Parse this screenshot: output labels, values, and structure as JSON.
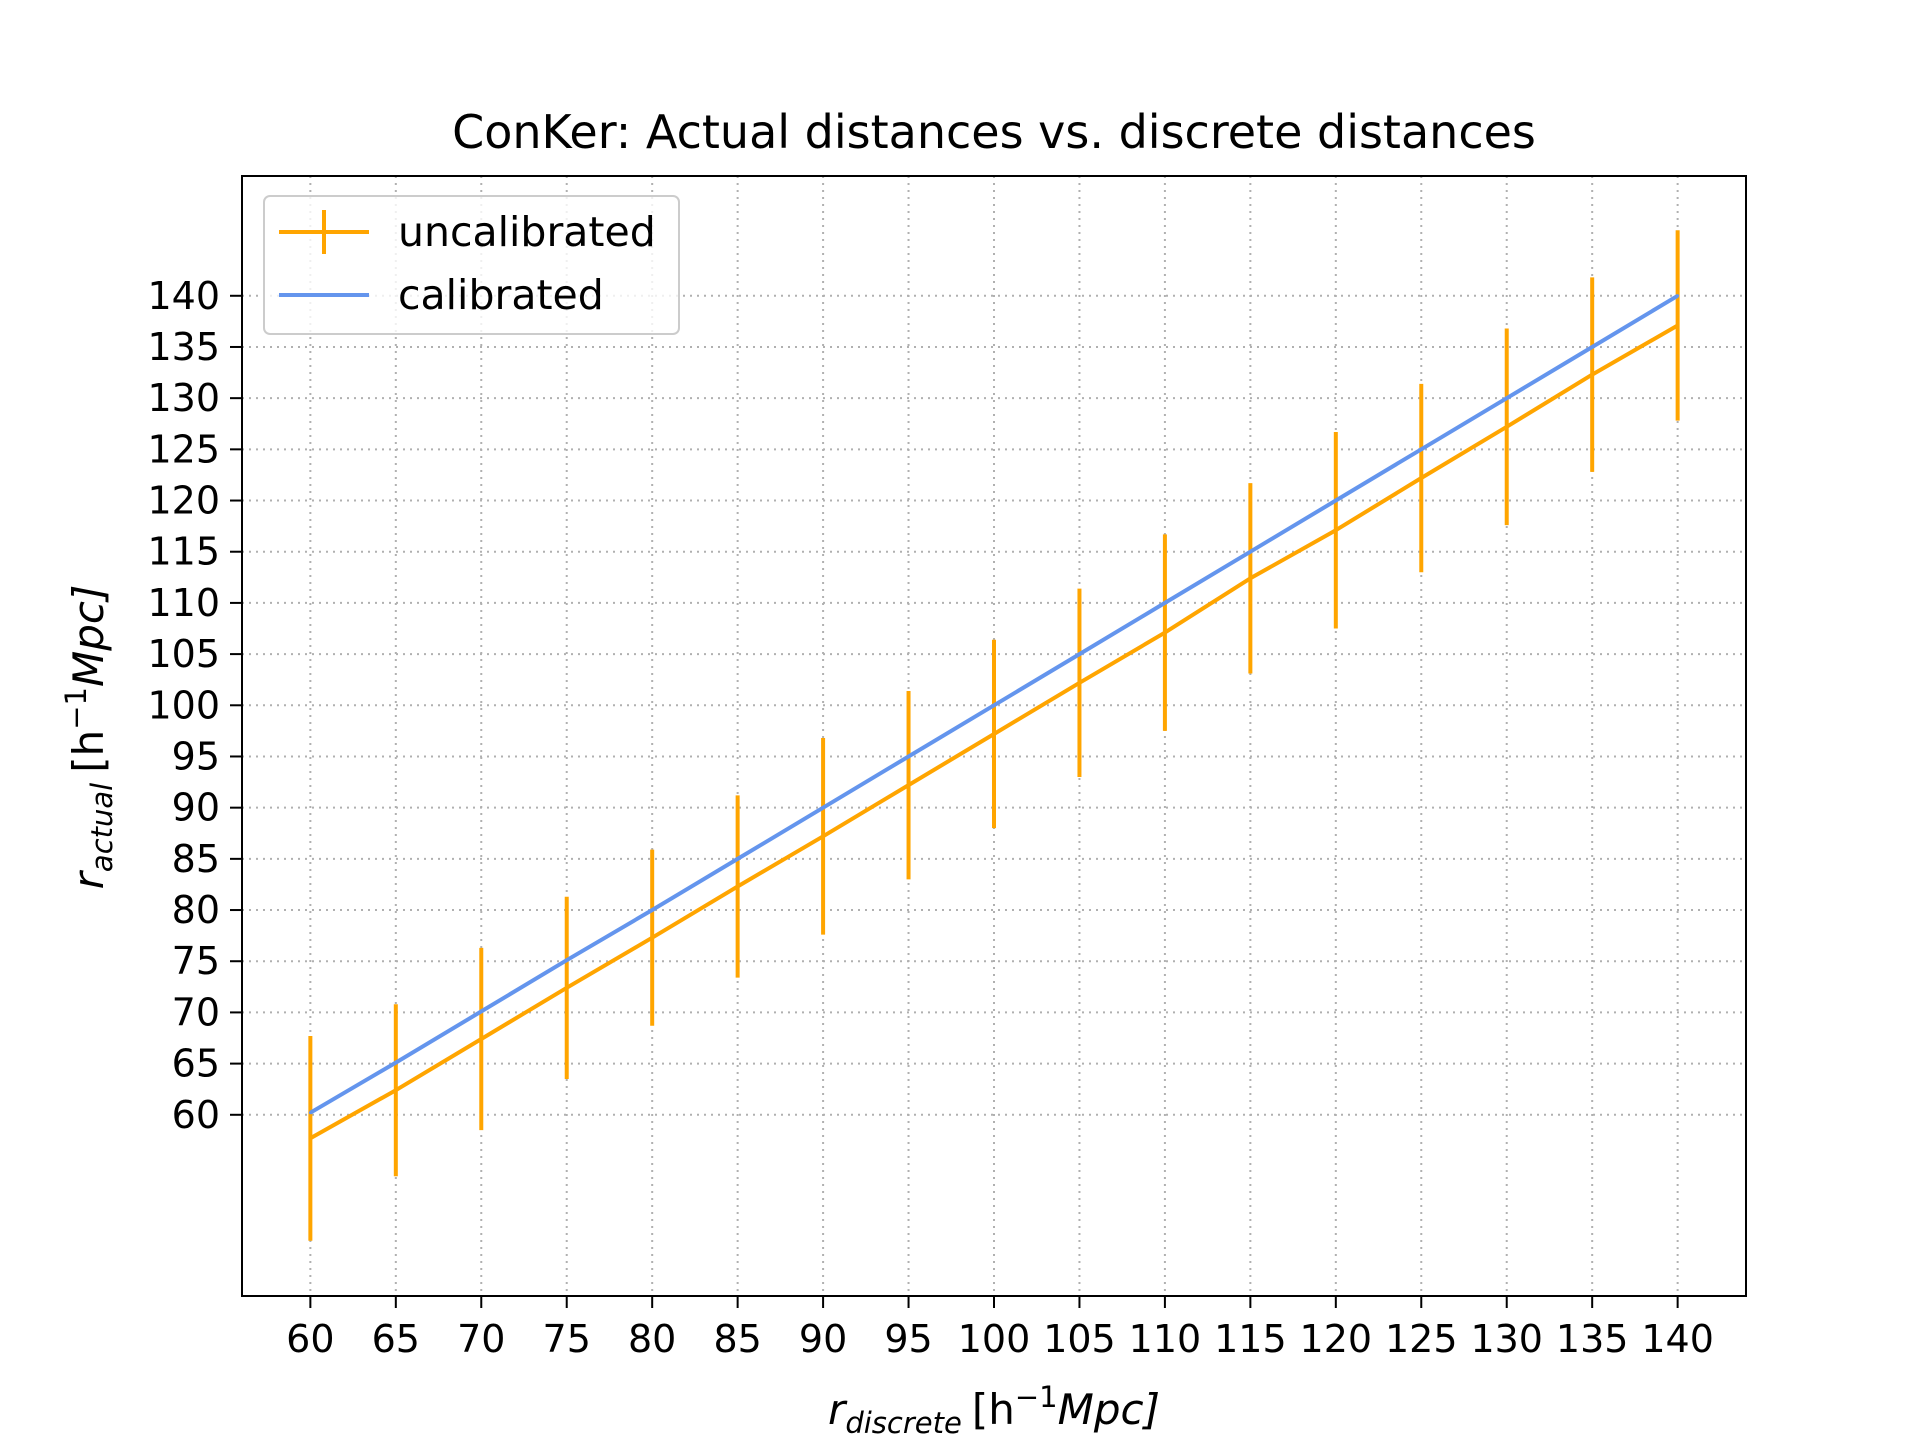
{
  "chart_data": {
    "type": "line",
    "title": "ConKer: Actual distances vs. discrete distances",
    "xlabel": {
      "symbol": "r",
      "subscript": "discrete",
      "units_prefix": "[h",
      "units_exponent": "−1",
      "units_suffix": "Mpc]"
    },
    "ylabel": {
      "symbol": "r",
      "subscript": "actual",
      "units_prefix": "[h",
      "units_exponent": "−1",
      "units_suffix": "Mpc]"
    },
    "x_ticks": [
      60,
      65,
      70,
      75,
      80,
      85,
      90,
      95,
      100,
      105,
      110,
      115,
      120,
      125,
      130,
      135,
      140
    ],
    "y_ticks": [
      60,
      65,
      70,
      75,
      80,
      85,
      90,
      95,
      100,
      105,
      110,
      115,
      120,
      125,
      130,
      135,
      140
    ],
    "xlim": [
      56,
      144
    ],
    "ylim": [
      42.3,
      151.7
    ],
    "grid": true,
    "grid_style": "dotted",
    "legend_position": "top-left",
    "series": [
      {
        "name": "uncalibrated",
        "color": "#FFA500",
        "style": "line-with-errorbars",
        "x": [
          60,
          65,
          70,
          75,
          80,
          85,
          90,
          95,
          100,
          105,
          110,
          115,
          120,
          125,
          130,
          135,
          140
        ],
        "y": [
          57.7,
          62.4,
          67.4,
          72.4,
          77.3,
          82.3,
          87.2,
          92.2,
          97.2,
          102.2,
          107.1,
          112.4,
          117.1,
          122.2,
          127.2,
          132.3,
          137.1
        ],
        "yerr": [
          10.0,
          8.4,
          8.9,
          8.9,
          8.6,
          8.9,
          9.6,
          9.2,
          9.2,
          9.2,
          9.6,
          9.3,
          9.6,
          9.2,
          9.6,
          9.5,
          9.3
        ]
      },
      {
        "name": "calibrated",
        "color": "#6495ED",
        "style": "line",
        "x": [
          60,
          65,
          70,
          75,
          80,
          85,
          90,
          95,
          100,
          105,
          110,
          115,
          120,
          125,
          130,
          135,
          140
        ],
        "y": [
          60.2,
          65.1,
          70.1,
          75.1,
          80.0,
          85.0,
          90.0,
          95.0,
          100.0,
          105.0,
          110.0,
          115.0,
          120.0,
          125.0,
          130.0,
          135.0,
          140.0
        ]
      }
    ]
  }
}
